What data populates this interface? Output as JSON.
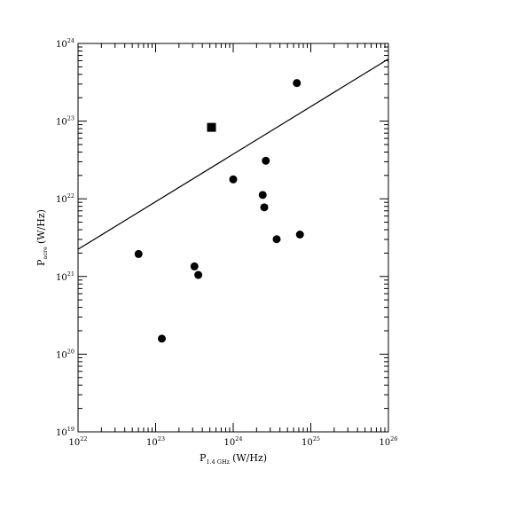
{
  "chart_data": {
    "type": "scatter",
    "title": "",
    "xlabel": "P",
    "xlabel_sub": "1.4 GHz",
    "xlabel_unit": "(W/Hz)",
    "ylabel": "P",
    "ylabel_sub": "acre",
    "ylabel_unit": "(W/Hz)",
    "xscale": "log",
    "yscale": "log",
    "xlim_log10": [
      22,
      26
    ],
    "ylim_log10": [
      19,
      24
    ],
    "grid": false,
    "x_ticks": [
      {
        "base": "10",
        "exp": "22",
        "log10": 22
      },
      {
        "base": "10",
        "exp": "23",
        "log10": 23
      },
      {
        "base": "10",
        "exp": "24",
        "log10": 24
      },
      {
        "base": "10",
        "exp": "25",
        "log10": 25
      },
      {
        "base": "10",
        "exp": "26",
        "log10": 26
      }
    ],
    "y_ticks": [
      {
        "base": "10",
        "exp": "19",
        "log10": 19
      },
      {
        "base": "10",
        "exp": "20",
        "log10": 20
      },
      {
        "base": "10",
        "exp": "21",
        "log10": 21
      },
      {
        "base": "10",
        "exp": "22",
        "log10": 22
      },
      {
        "base": "10",
        "exp": "23",
        "log10": 23
      },
      {
        "base": "10",
        "exp": "24",
        "log10": 24
      }
    ],
    "series": [
      {
        "marker": "circle",
        "points_log10": [
          {
            "x": 22.78,
            "y": 21.29
          },
          {
            "x": 23.08,
            "y": 20.2
          },
          {
            "x": 23.5,
            "y": 21.13
          },
          {
            "x": 23.55,
            "y": 21.02
          },
          {
            "x": 24.0,
            "y": 22.25
          },
          {
            "x": 24.38,
            "y": 22.05
          },
          {
            "x": 24.4,
            "y": 21.89
          },
          {
            "x": 24.42,
            "y": 22.49
          },
          {
            "x": 24.56,
            "y": 21.48
          },
          {
            "x": 24.82,
            "y": 23.49
          },
          {
            "x": 24.86,
            "y": 21.54
          }
        ]
      },
      {
        "marker": "square",
        "points_log10": [
          {
            "x": 23.72,
            "y": 22.92
          }
        ]
      },
      {
        "marker": "line",
        "line_log10": [
          {
            "x": 22.0,
            "y": 21.35
          },
          {
            "x": 26.0,
            "y": 23.8
          }
        ]
      }
    ]
  }
}
